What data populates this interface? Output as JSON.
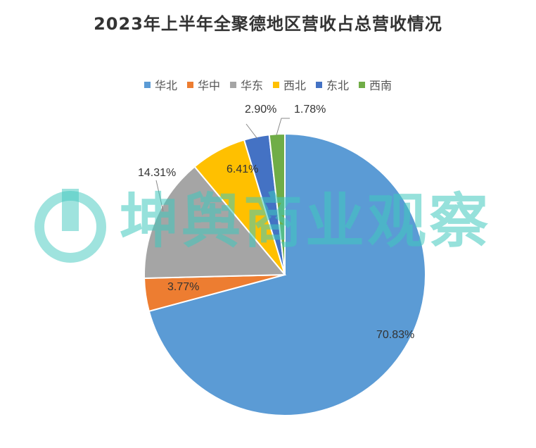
{
  "chart_data": {
    "type": "pie",
    "title": "2023年上半年全聚德地区营收占总营收情况",
    "categories": [
      "华北",
      "华中",
      "华东",
      "西北",
      "东北",
      "西南"
    ],
    "values": [
      70.83,
      3.77,
      14.31,
      6.41,
      2.9,
      1.78
    ],
    "labels": [
      "70.83%",
      "3.77%",
      "14.31%",
      "6.41%",
      "2.90%",
      "1.78%"
    ],
    "colors": [
      "#5B9BD5",
      "#ED7D31",
      "#A5A5A5",
      "#FFC000",
      "#4472C4",
      "#70AD47"
    ],
    "start": "top, clockwise",
    "legend_position": "top"
  },
  "watermark": {
    "text": "坤舆商业观察",
    "color": "#40C8BE"
  }
}
